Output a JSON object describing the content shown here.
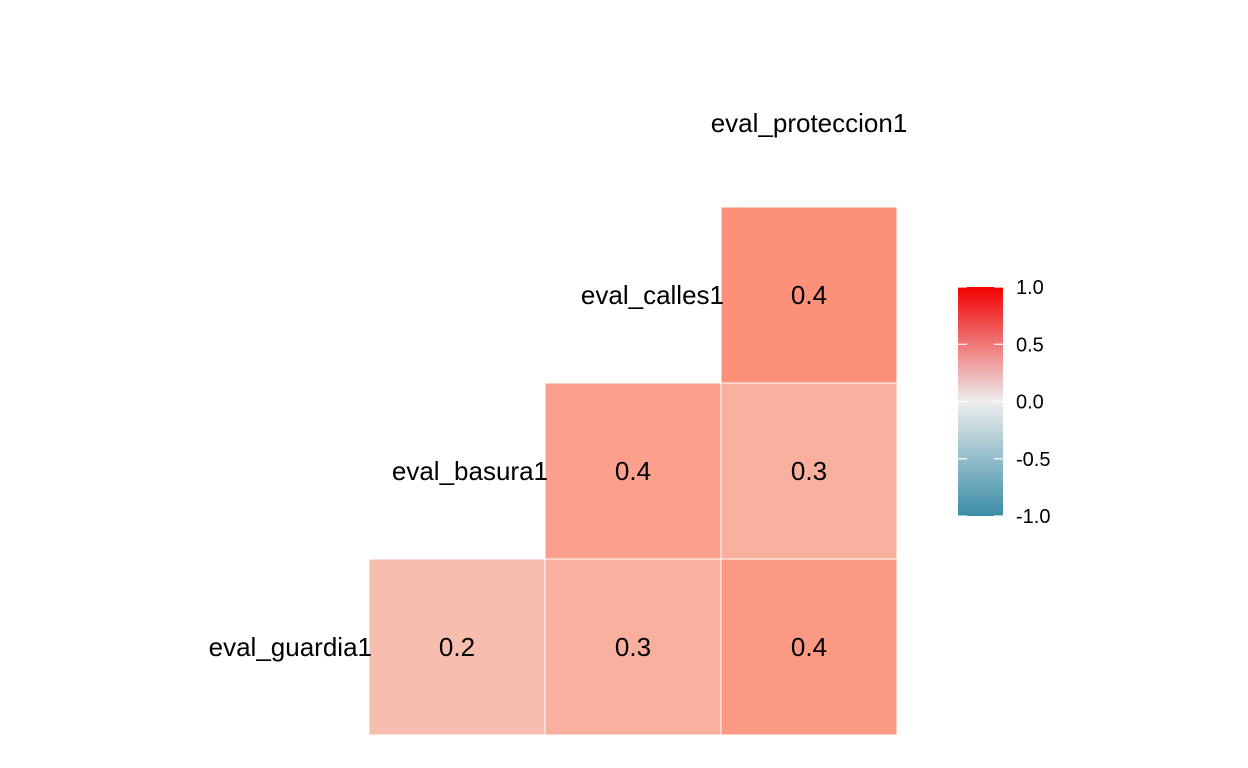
{
  "chart_data": {
    "type": "heatmap",
    "variables": [
      "eval_guardia1",
      "eval_basura1",
      "eval_calles1",
      "eval_proteccion1"
    ],
    "cells": [
      {
        "row": "eval_calles1",
        "col": "eval_proteccion1",
        "value": 0.4,
        "label": "0.4"
      },
      {
        "row": "eval_basura1",
        "col": "eval_calles1",
        "value": 0.4,
        "label": "0.4"
      },
      {
        "row": "eval_basura1",
        "col": "eval_proteccion1",
        "value": 0.3,
        "label": "0.3"
      },
      {
        "row": "eval_guardia1",
        "col": "eval_basura1",
        "value": 0.2,
        "label": "0.2"
      },
      {
        "row": "eval_guardia1",
        "col": "eval_calles1",
        "value": 0.3,
        "label": "0.3"
      },
      {
        "row": "eval_guardia1",
        "col": "eval_proteccion1",
        "value": 0.4,
        "label": "0.4"
      }
    ],
    "legend": {
      "range": [
        -1.0,
        1.0
      ],
      "ticks": [
        "1.0",
        "0.5",
        "0.0",
        "-0.5",
        "-1.0"
      ],
      "tick_values": [
        1.0,
        0.5,
        0.0,
        -0.5,
        -1.0
      ],
      "colors": {
        "low": "#3A8CA6",
        "mid": "#EEEEEE",
        "high": "#F20000"
      }
    }
  },
  "cell_colors": {
    "eval_calles1|eval_proteccion1": "#FD9079",
    "eval_basura1|eval_calles1": "#FBA08D",
    "eval_basura1|eval_proteccion1": "#F9AF9E",
    "eval_guardia1|eval_basura1": "#F7BDAF",
    "eval_guardia1|eval_calles1": "#F9AF9E",
    "eval_guardia1|eval_proteccion1": "#FC9983"
  }
}
